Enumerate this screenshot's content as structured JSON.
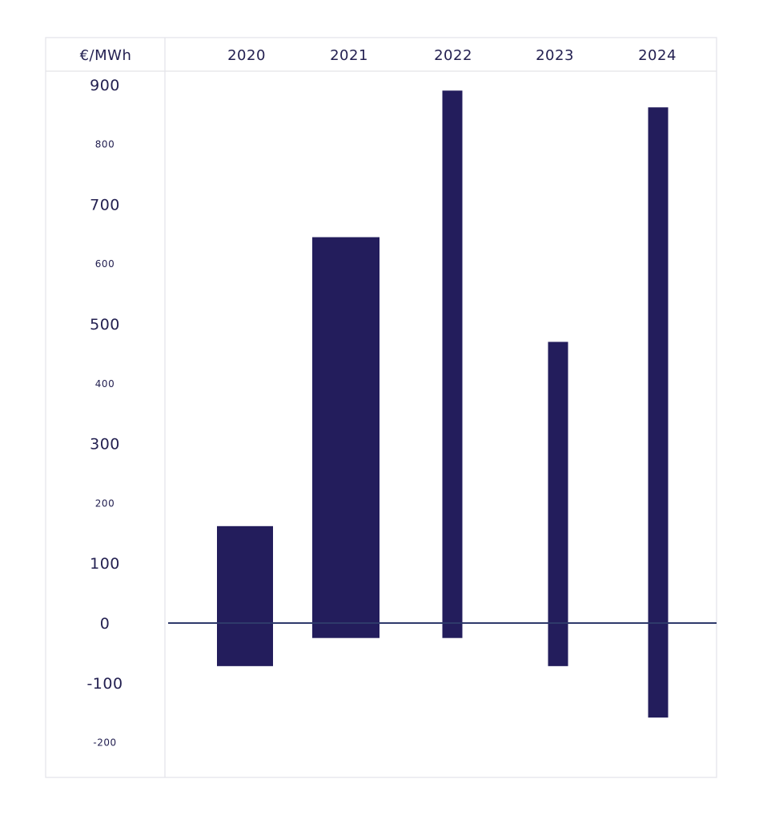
{
  "chart_data": {
    "type": "bar",
    "unit_label": "€/MWh",
    "categories": [
      "2020",
      "2021",
      "2022",
      "2023",
      "2024"
    ],
    "ranges": [
      {
        "category": "2020",
        "low": -72,
        "high": 162
      },
      {
        "category": "2021",
        "low": -25,
        "high": 645
      },
      {
        "category": "2022",
        "low": -25,
        "high": 890
      },
      {
        "category": "2023",
        "low": -72,
        "high": 470
      },
      {
        "category": "2024",
        "low": -158,
        "high": 862
      }
    ],
    "y_ticks": [
      "900",
      "800",
      "700",
      "600",
      "500",
      "400",
      "300",
      "200",
      "100",
      "0",
      "-100",
      "-200"
    ],
    "ylim": [
      -200,
      900
    ],
    "grid": false,
    "bar_color": "#231d5c",
    "zero_line_color": "#2e3a6b"
  }
}
